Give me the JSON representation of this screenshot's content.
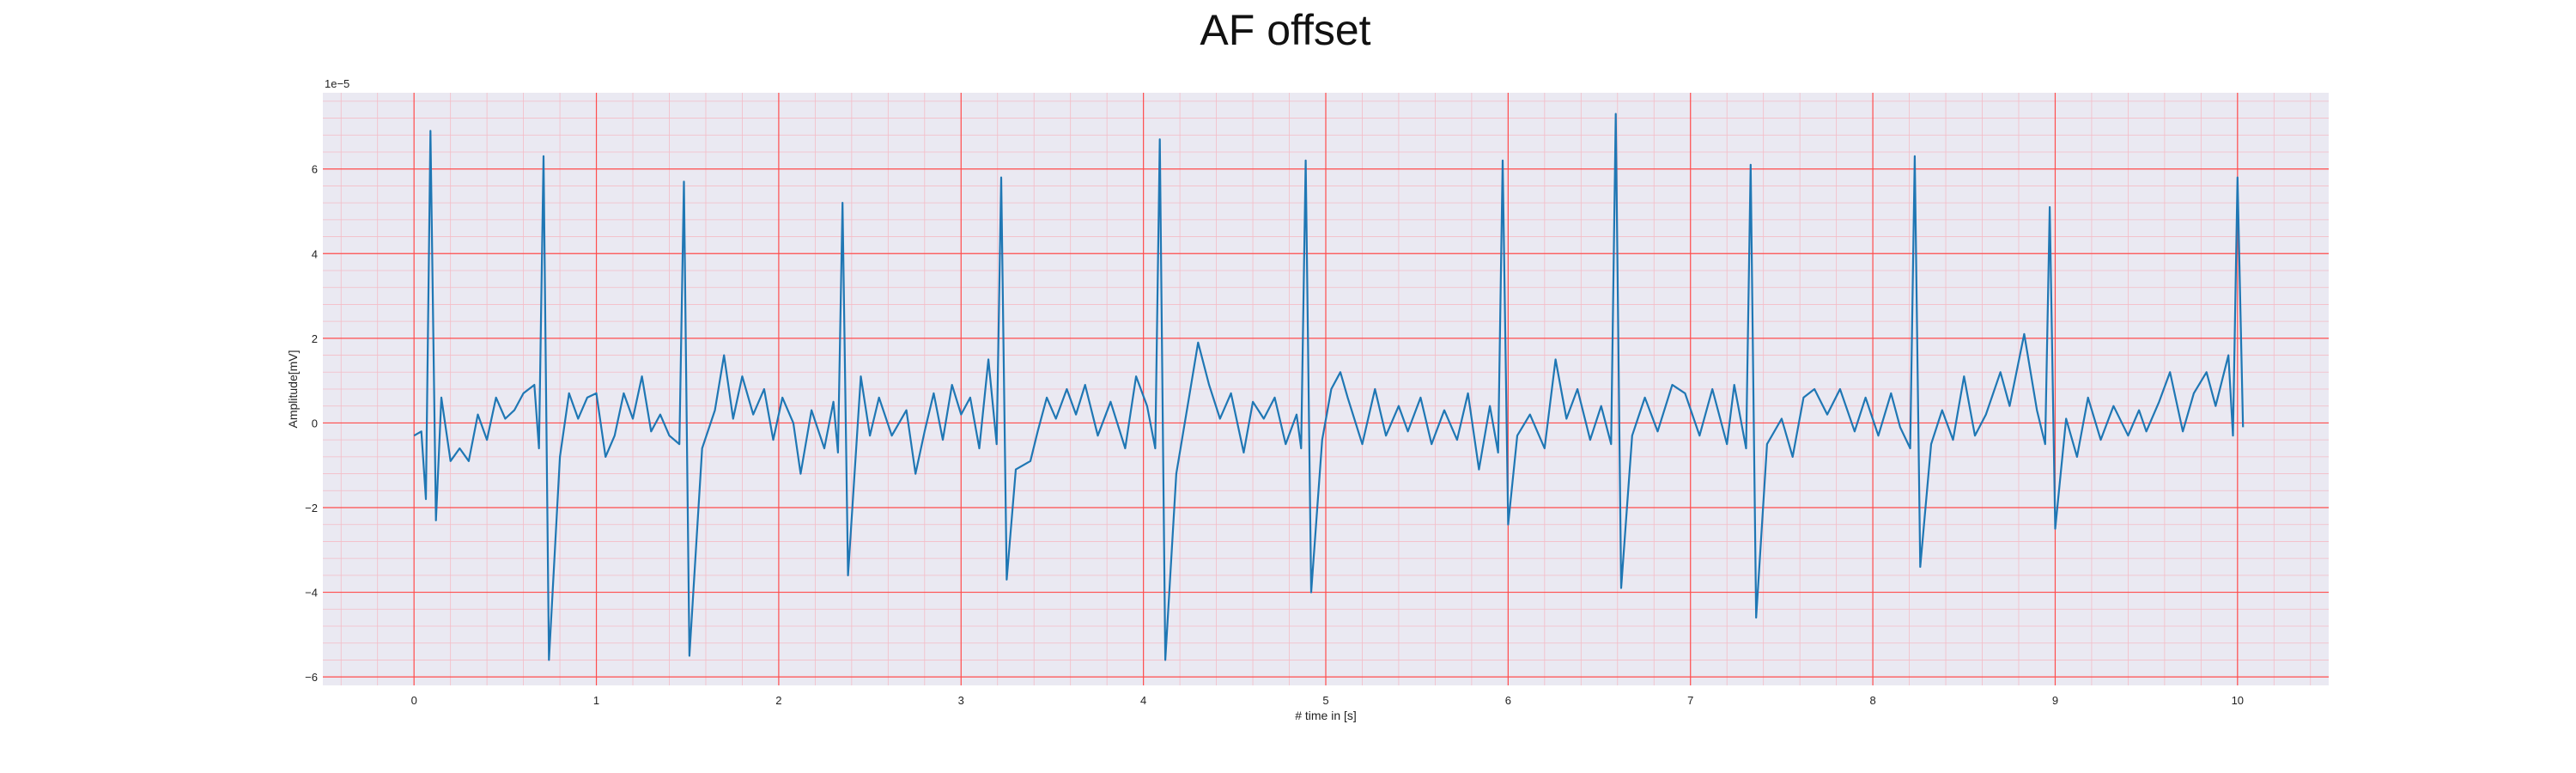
{
  "colors": {
    "plot_background": "#eae9f2",
    "major_grid": "#ff4d4d",
    "minor_grid": "#f4bcc6",
    "line": "#1f77b4",
    "text": "#222222"
  },
  "chart_data": {
    "type": "line",
    "title": "AF offset",
    "xlabel": "# time in [s]",
    "ylabel": "Amplitude[mV]",
    "y_scale_label": "1e−5",
    "xlim": [
      -0.5,
      10.5
    ],
    "ylim": [
      -6.2,
      7.8
    ],
    "y_multiplier": 1e-05,
    "x_ticks": [
      0,
      1,
      2,
      3,
      4,
      5,
      6,
      7,
      8,
      9,
      10
    ],
    "x_tick_labels": [
      "0",
      "1",
      "2",
      "3",
      "4",
      "5",
      "6",
      "7",
      "8",
      "9",
      "10"
    ],
    "y_ticks": [
      -6,
      -4,
      -2,
      0,
      2,
      4,
      6
    ],
    "y_tick_labels": [
      "−6",
      "−4",
      "−2",
      "0",
      "2",
      "4",
      "6"
    ],
    "grid": true,
    "minor_grid": true,
    "legend": "none",
    "beats": [
      {
        "t": 0.09,
        "peak": 6.9,
        "trough": -2.3,
        "pre": -1.8
      },
      {
        "t": 0.71,
        "peak": 6.3,
        "trough": -5.6,
        "pre": -0.6
      },
      {
        "t": 1.48,
        "peak": 5.7,
        "trough": -5.5,
        "pre": -0.5
      },
      {
        "t": 2.35,
        "peak": 5.2,
        "trough": -3.6,
        "pre": -0.7
      },
      {
        "t": 3.22,
        "peak": 5.8,
        "trough": -3.7,
        "pre": -0.5
      },
      {
        "t": 4.09,
        "peak": 6.7,
        "trough": -5.6,
        "pre": -0.6
      },
      {
        "t": 4.89,
        "peak": 6.2,
        "trough": -4.0,
        "pre": -0.6
      },
      {
        "t": 5.97,
        "peak": 6.2,
        "trough": -2.4,
        "pre": -0.7
      },
      {
        "t": 6.59,
        "peak": 7.3,
        "trough": -3.9,
        "pre": -0.5
      },
      {
        "t": 7.33,
        "peak": 6.1,
        "trough": -4.6,
        "pre": -0.6
      },
      {
        "t": 8.23,
        "peak": 6.3,
        "trough": -3.4,
        "pre": -0.6
      },
      {
        "t": 8.97,
        "peak": 5.1,
        "trough": -2.5,
        "pre": -0.5
      },
      {
        "t": 10.0,
        "peak": 5.8,
        "trough": -0.1,
        "pre": -0.3
      }
    ],
    "baseline": [
      [
        0.0,
        -0.3
      ],
      [
        0.04,
        -0.2
      ],
      [
        0.15,
        0.6
      ],
      [
        0.2,
        -0.9
      ],
      [
        0.25,
        -0.6
      ],
      [
        0.3,
        -0.9
      ],
      [
        0.35,
        0.2
      ],
      [
        0.4,
        -0.4
      ],
      [
        0.45,
        0.6
      ],
      [
        0.5,
        0.1
      ],
      [
        0.55,
        0.3
      ],
      [
        0.6,
        0.7
      ],
      [
        0.66,
        0.9
      ],
      [
        0.8,
        -0.8
      ],
      [
        0.85,
        0.7
      ],
      [
        0.9,
        0.1
      ],
      [
        0.95,
        0.6
      ],
      [
        1.0,
        0.7
      ],
      [
        1.05,
        -0.8
      ],
      [
        1.1,
        -0.3
      ],
      [
        1.15,
        0.7
      ],
      [
        1.2,
        0.1
      ],
      [
        1.25,
        1.1
      ],
      [
        1.3,
        -0.2
      ],
      [
        1.35,
        0.2
      ],
      [
        1.4,
        -0.3
      ],
      [
        1.58,
        -0.6
      ],
      [
        1.65,
        0.3
      ],
      [
        1.7,
        1.6
      ],
      [
        1.75,
        0.1
      ],
      [
        1.8,
        1.1
      ],
      [
        1.86,
        0.2
      ],
      [
        1.92,
        0.8
      ],
      [
        1.97,
        -0.4
      ],
      [
        2.02,
        0.6
      ],
      [
        2.08,
        0.0
      ],
      [
        2.12,
        -1.2
      ],
      [
        2.18,
        0.3
      ],
      [
        2.25,
        -0.6
      ],
      [
        2.3,
        0.5
      ],
      [
        2.45,
        1.1
      ],
      [
        2.5,
        -0.3
      ],
      [
        2.55,
        0.6
      ],
      [
        2.62,
        -0.3
      ],
      [
        2.7,
        0.3
      ],
      [
        2.75,
        -1.2
      ],
      [
        2.8,
        -0.2
      ],
      [
        2.85,
        0.7
      ],
      [
        2.9,
        -0.4
      ],
      [
        2.95,
        0.9
      ],
      [
        3.0,
        0.2
      ],
      [
        3.05,
        0.6
      ],
      [
        3.1,
        -0.6
      ],
      [
        3.15,
        1.5
      ],
      [
        3.3,
        -1.1
      ],
      [
        3.38,
        -0.9
      ],
      [
        3.42,
        -0.2
      ],
      [
        3.47,
        0.6
      ],
      [
        3.52,
        0.1
      ],
      [
        3.58,
        0.8
      ],
      [
        3.63,
        0.2
      ],
      [
        3.68,
        0.9
      ],
      [
        3.75,
        -0.3
      ],
      [
        3.82,
        0.5
      ],
      [
        3.9,
        -0.6
      ],
      [
        3.96,
        1.1
      ],
      [
        4.02,
        0.4
      ],
      [
        4.18,
        -1.2
      ],
      [
        4.25,
        0.6
      ],
      [
        4.3,
        1.9
      ],
      [
        4.36,
        0.9
      ],
      [
        4.42,
        0.1
      ],
      [
        4.48,
        0.7
      ],
      [
        4.55,
        -0.7
      ],
      [
        4.6,
        0.5
      ],
      [
        4.66,
        0.1
      ],
      [
        4.72,
        0.6
      ],
      [
        4.78,
        -0.5
      ],
      [
        4.84,
        0.2
      ],
      [
        4.98,
        -0.4
      ],
      [
        5.03,
        0.8
      ],
      [
        5.08,
        1.2
      ],
      [
        5.12,
        0.6
      ],
      [
        5.2,
        -0.5
      ],
      [
        5.27,
        0.8
      ],
      [
        5.33,
        -0.3
      ],
      [
        5.4,
        0.4
      ],
      [
        5.45,
        -0.2
      ],
      [
        5.52,
        0.6
      ],
      [
        5.58,
        -0.5
      ],
      [
        5.65,
        0.3
      ],
      [
        5.72,
        -0.4
      ],
      [
        5.78,
        0.7
      ],
      [
        5.84,
        -1.1
      ],
      [
        5.9,
        0.4
      ],
      [
        6.05,
        -0.3
      ],
      [
        6.12,
        0.2
      ],
      [
        6.2,
        -0.6
      ],
      [
        6.26,
        1.5
      ],
      [
        6.32,
        0.1
      ],
      [
        6.38,
        0.8
      ],
      [
        6.45,
        -0.4
      ],
      [
        6.51,
        0.4
      ],
      [
        6.68,
        -0.3
      ],
      [
        6.75,
        0.6
      ],
      [
        6.82,
        -0.2
      ],
      [
        6.9,
        0.9
      ],
      [
        6.97,
        0.7
      ],
      [
        7.05,
        -0.3
      ],
      [
        7.12,
        0.8
      ],
      [
        7.2,
        -0.5
      ],
      [
        7.24,
        0.9
      ],
      [
        7.42,
        -0.5
      ],
      [
        7.5,
        0.1
      ],
      [
        7.56,
        -0.8
      ],
      [
        7.62,
        0.6
      ],
      [
        7.68,
        0.8
      ],
      [
        7.75,
        0.2
      ],
      [
        7.82,
        0.8
      ],
      [
        7.9,
        -0.2
      ],
      [
        7.96,
        0.6
      ],
      [
        8.03,
        -0.3
      ],
      [
        8.1,
        0.7
      ],
      [
        8.15,
        -0.1
      ],
      [
        8.32,
        -0.5
      ],
      [
        8.38,
        0.3
      ],
      [
        8.44,
        -0.4
      ],
      [
        8.5,
        1.1
      ],
      [
        8.56,
        -0.3
      ],
      [
        8.62,
        0.2
      ],
      [
        8.7,
        1.2
      ],
      [
        8.75,
        0.4
      ],
      [
        8.83,
        2.1
      ],
      [
        8.9,
        0.3
      ],
      [
        9.06,
        0.1
      ],
      [
        9.12,
        -0.8
      ],
      [
        9.18,
        0.6
      ],
      [
        9.25,
        -0.4
      ],
      [
        9.32,
        0.4
      ],
      [
        9.4,
        -0.3
      ],
      [
        9.46,
        0.3
      ],
      [
        9.5,
        -0.2
      ],
      [
        9.57,
        0.5
      ],
      [
        9.63,
        1.2
      ],
      [
        9.7,
        -0.2
      ],
      [
        9.76,
        0.7
      ],
      [
        9.83,
        1.2
      ],
      [
        9.88,
        0.4
      ],
      [
        9.95,
        1.6
      ]
    ]
  }
}
